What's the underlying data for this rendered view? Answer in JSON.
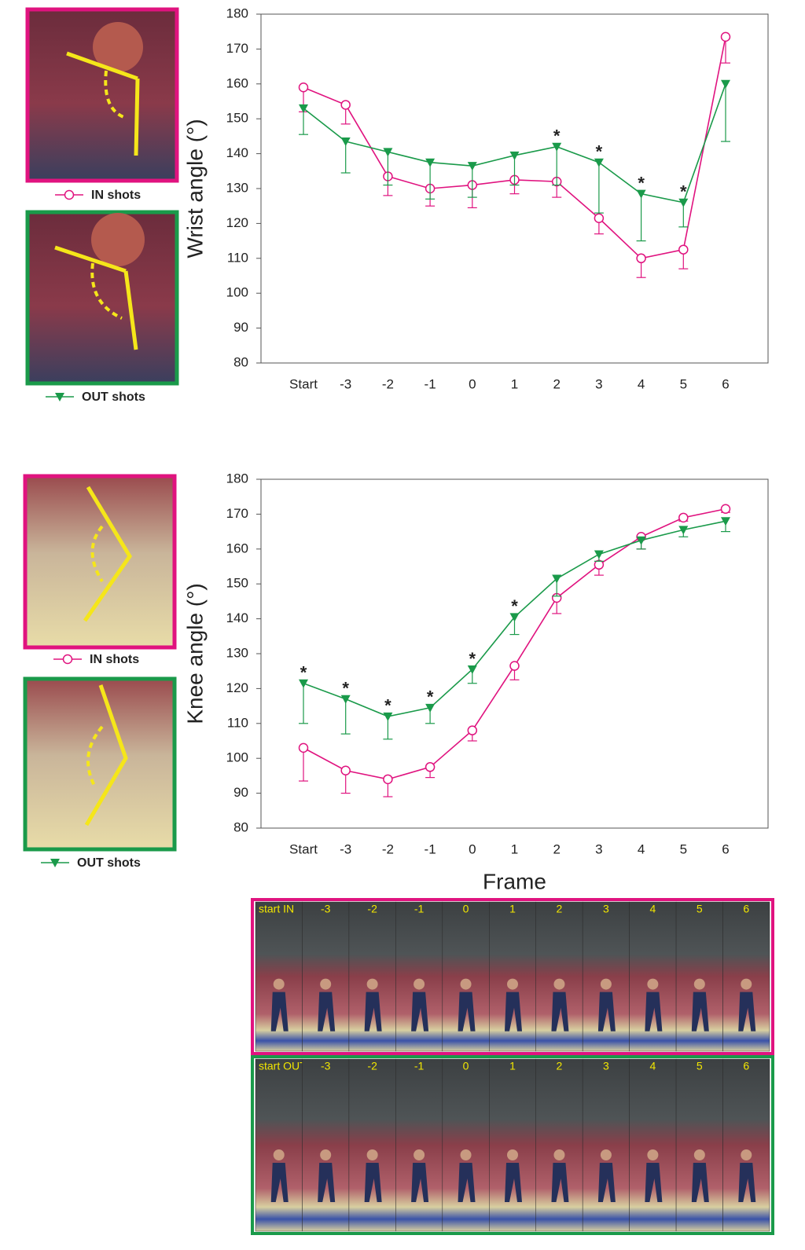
{
  "chart_data": [
    {
      "type": "line",
      "ylabel": "Wrist angle (°)",
      "categories": [
        "Start",
        "-3",
        "-2",
        "-1",
        "0",
        "1",
        "2",
        "3",
        "4",
        "5",
        "6"
      ],
      "series": [
        {
          "name": "IN shots",
          "color": "#e0137f",
          "marker": "circle",
          "values": [
            159,
            154,
            133.5,
            130,
            131,
            132.5,
            132,
            121.5,
            110,
            112.5,
            173.5
          ],
          "errors": [
            7,
            5.5,
            5.5,
            5,
            6.5,
            4,
            4.5,
            4.5,
            5.5,
            5.5,
            7.5
          ]
        },
        {
          "name": "OUT shots",
          "color": "#1a9a4a",
          "marker": "triangle-down",
          "values": [
            153,
            143.5,
            140.5,
            137.5,
            136.5,
            139.5,
            142,
            137.5,
            128.5,
            126,
            160
          ],
          "errors": [
            7.5,
            9,
            9.5,
            10.5,
            9,
            8.5,
            11,
            14.5,
            13.5,
            7,
            16.5
          ]
        }
      ],
      "annotations": [
        {
          "category": "2",
          "text": "*"
        },
        {
          "category": "3",
          "text": "*"
        },
        {
          "category": "4",
          "text": "*"
        },
        {
          "category": "5",
          "text": "*"
        }
      ],
      "ylim": [
        80,
        180
      ],
      "yticks": [
        80,
        90,
        100,
        110,
        120,
        130,
        140,
        150,
        160,
        170,
        180
      ],
      "grid": false
    },
    {
      "type": "line",
      "ylabel": "Knee angle (°)",
      "xlabel": "Frame",
      "categories": [
        "Start",
        "-3",
        "-2",
        "-1",
        "0",
        "1",
        "2",
        "3",
        "4",
        "5",
        "6"
      ],
      "series": [
        {
          "name": "IN shots",
          "color": "#e0137f",
          "marker": "circle",
          "values": [
            103,
            96.5,
            94,
            97.5,
            108,
            126.5,
            146,
            155.5,
            163.5,
            169,
            171.5
          ],
          "errors": [
            9.5,
            6.5,
            5,
            3,
            3,
            4,
            4.5,
            3,
            3.5,
            1,
            1
          ]
        },
        {
          "name": "OUT shots",
          "color": "#1a9a4a",
          "marker": "triangle-down",
          "values": [
            121.5,
            117,
            112,
            114.5,
            125.5,
            140.5,
            151.5,
            158.5,
            162.5,
            165.5,
            168
          ],
          "errors": [
            11.5,
            10,
            6.5,
            4.5,
            4,
            5,
            5,
            2,
            2.5,
            2,
            3
          ]
        }
      ],
      "annotations": [
        {
          "category": "Start",
          "text": "*"
        },
        {
          "category": "-3",
          "text": "*"
        },
        {
          "category": "-2",
          "text": "*"
        },
        {
          "category": "-1",
          "text": "*"
        },
        {
          "category": "0",
          "text": "*"
        },
        {
          "category": "1",
          "text": "*"
        }
      ],
      "ylim": [
        80,
        180
      ],
      "yticks": [
        80,
        90,
        100,
        110,
        120,
        130,
        140,
        150,
        160,
        170,
        180
      ],
      "grid": false
    }
  ],
  "photo_strips": [
    {
      "color": "#e0137f",
      "labels": [
        "start IN",
        "-3",
        "-2",
        "-1",
        "0",
        "1",
        "2",
        "3",
        "4",
        "5",
        "6"
      ]
    },
    {
      "color": "#1a9a4a",
      "labels": [
        "start OUT",
        "-3",
        "-2",
        "-1",
        "0",
        "1",
        "2",
        "3",
        "4",
        "5",
        "6"
      ]
    }
  ]
}
